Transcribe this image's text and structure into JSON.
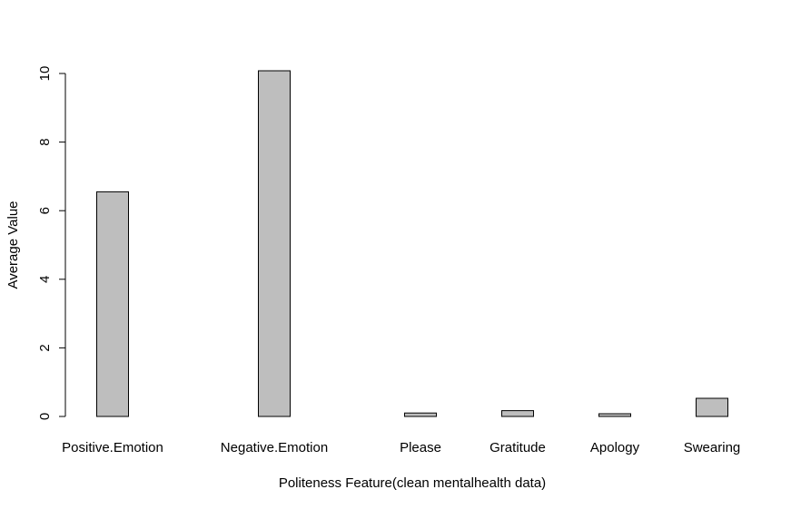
{
  "chart_data": {
    "type": "bar",
    "categories": [
      "Positive.Emotion",
      "Negative.Emotion",
      "Please",
      "Gratitude",
      "Apology",
      "Swearing"
    ],
    "values": [
      6.55,
      10.08,
      0.1,
      0.17,
      0.08,
      0.53
    ],
    "xlabel": "Politeness Feature(clean mentalhealth data)",
    "ylabel": "Average Value",
    "yticks": [
      0,
      2,
      4,
      6,
      8,
      10
    ],
    "ylim": [
      0,
      10.08
    ],
    "bar_color": "#bebebe",
    "bar_border": "#000000",
    "grid": false
  }
}
